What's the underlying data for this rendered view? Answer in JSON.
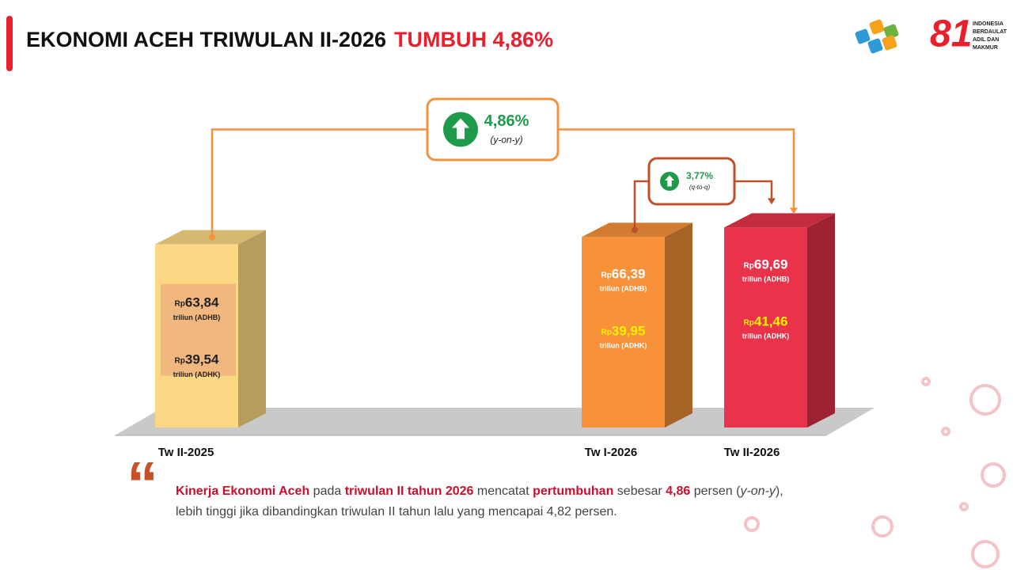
{
  "header": {
    "title": "EKONOMI ACEH TRIWULAN II-2026",
    "highlight": "TUMBUH 4,86%",
    "anniversary": "81",
    "motto": [
      "INDONESIA",
      "BERDAULAT",
      "ADIL DAN",
      "MAKMUR"
    ]
  },
  "chart_data": {
    "type": "bar",
    "categories": [
      "Tw II-2025",
      "Tw I-2026",
      "Tw II-2026"
    ],
    "currency": "Rp",
    "colors": [
      "#fdd884",
      "#f7923a",
      "#e8334a"
    ],
    "ylim": [
      0,
      80
    ],
    "series": [
      {
        "name": "triliun (ADHB)",
        "values": [
          63.84,
          66.39,
          69.69
        ],
        "value_labels": [
          "63,84",
          "66,39",
          "69,69"
        ]
      },
      {
        "name": "triliun (ADHK)",
        "values": [
          39.54,
          39.95,
          41.46
        ],
        "value_labels": [
          "39,54",
          "39,95",
          "41,46"
        ]
      }
    ],
    "growth": [
      {
        "value": 4.86,
        "label": "4,86%",
        "basis": "(y-on-y)"
      },
      {
        "value": 3.77,
        "label": "3,77%",
        "basis": "(q-to-q)"
      }
    ]
  },
  "quote": [
    [
      {
        "text": "Kinerja Ekonomi Aceh",
        "style": "red"
      },
      {
        "text": " pada ",
        "style": "plain"
      },
      {
        "text": "triwulan II tahun 2026",
        "style": "red"
      },
      {
        "text": " mencatat ",
        "style": "plain"
      },
      {
        "text": "pertumbuhan",
        "style": "red"
      },
      {
        "text": " sebesar ",
        "style": "plain"
      },
      {
        "text": "4,86",
        "style": "red"
      },
      {
        "text": " persen (",
        "style": "plain"
      },
      {
        "text": "y-on-y",
        "style": "italic"
      },
      {
        "text": "),",
        "style": "plain"
      }
    ],
    [
      {
        "text": "lebih tinggi jika dibandingkan triwulan II tahun lalu yang mencapai 4,82 persen.",
        "style": "plain"
      }
    ]
  ]
}
